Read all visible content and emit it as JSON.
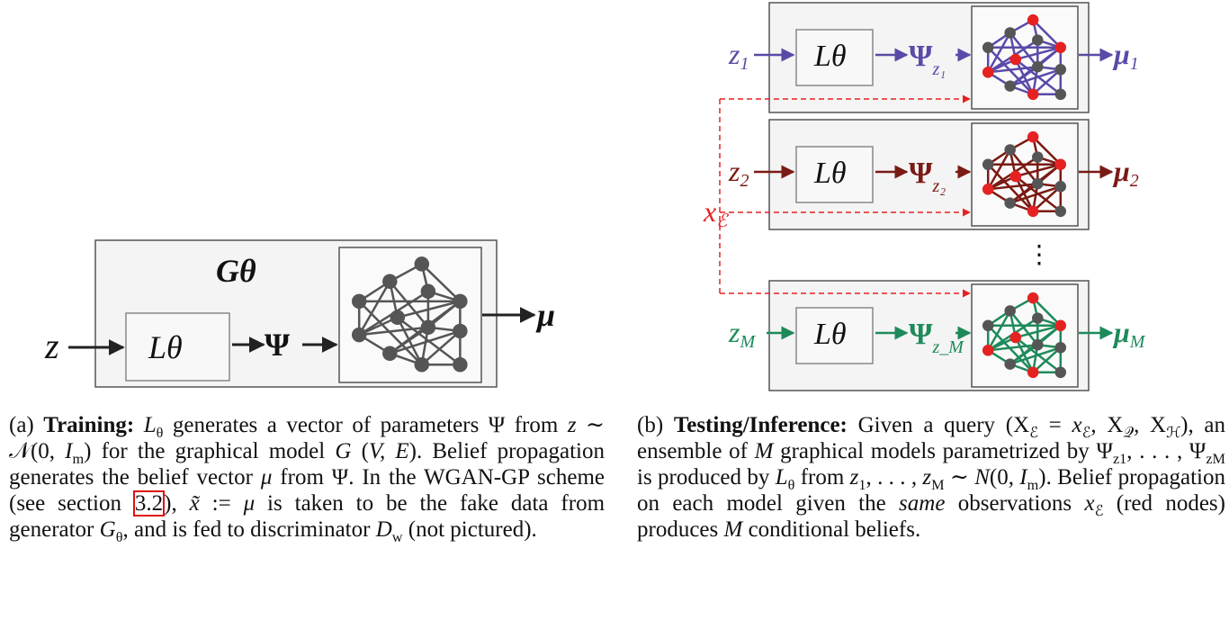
{
  "colors": {
    "panel_bg": "#f4f4f4",
    "panel_border": "#555555",
    "training": "#555555",
    "model1": "#5a4aa8",
    "model2": "#7a1a14",
    "modelM": "#1e8a5a",
    "evidence": "#e52222",
    "node_gray": "#555555",
    "ref_box": "#e01010"
  },
  "figure_a": {
    "generator_label": "Gθ",
    "latent_label": "z",
    "network_label": "Lθ",
    "params_label": "Ψ",
    "output_label": "μ"
  },
  "figure_b": {
    "evidence_label": "x",
    "evidence_sub": "ℰ",
    "ellipsis": "⋮",
    "models": [
      {
        "z": "z",
        "z_sub": "1",
        "L": "Lθ",
        "psi": "Ψ",
        "psi_sub": "z₁",
        "mu": "μ",
        "mu_sub": "1"
      },
      {
        "z": "z",
        "z_sub": "2",
        "L": "Lθ",
        "psi": "Ψ",
        "psi_sub": "z₂",
        "mu": "μ",
        "mu_sub": "2"
      },
      {
        "z": "z",
        "z_sub": "M",
        "L": "Lθ",
        "psi": "Ψ",
        "psi_sub": "z_M",
        "mu": "μ",
        "mu_sub": "M"
      }
    ]
  },
  "caption_a": [
    {
      "t": "(a) "
    },
    {
      "t": "Training:",
      "b": true
    },
    {
      "t": " "
    },
    {
      "t": "L",
      "i": true
    },
    {
      "t": "θ",
      "sub": true
    },
    {
      "t": " generates a vector of parameters Ψ from "
    },
    {
      "t": "z",
      "i": true
    },
    {
      "t": " ∼ 𝒩(0, "
    },
    {
      "t": "I",
      "i": true
    },
    {
      "t": "m",
      "sub": true
    },
    {
      "t": ") for the graphical model "
    },
    {
      "t": "G",
      "i": true
    },
    {
      "t": " ("
    },
    {
      "t": "V, E",
      "i": true
    },
    {
      "t": ").  Belief propagation generates the belief vector "
    },
    {
      "t": "μ",
      "i": true
    },
    {
      "t": " from Ψ.  In the WGAN-GP scheme (see section "
    },
    {
      "t": "3.2",
      "box": true
    },
    {
      "t": "), "
    },
    {
      "t": "x̃",
      "i": true
    },
    {
      "t": " := "
    },
    {
      "t": "μ",
      "i": true
    },
    {
      "t": " is taken to be the fake data from generator "
    },
    {
      "t": "G",
      "i": true
    },
    {
      "t": "θ",
      "sub": true
    },
    {
      "t": ", and is fed to discriminator "
    },
    {
      "t": "D",
      "i": true
    },
    {
      "t": "w",
      "sub": true
    },
    {
      "t": " (not pictured)."
    }
  ],
  "caption_b": [
    {
      "t": "(b) "
    },
    {
      "t": "Testing/Inference:",
      "b": true
    },
    {
      "t": "  Given a query (X"
    },
    {
      "t": "ℰ",
      "sub": true
    },
    {
      "t": " = "
    },
    {
      "t": "x",
      "i": true
    },
    {
      "t": "ℰ",
      "sub": true
    },
    {
      "t": ", X"
    },
    {
      "t": "𝒬",
      "sub": true
    },
    {
      "t": ", X"
    },
    {
      "t": "ℋ",
      "sub": true
    },
    {
      "t": "), an ensemble of "
    },
    {
      "t": "M",
      "i": true
    },
    {
      "t": " graphical models parametrized by Ψ"
    },
    {
      "t": "z1",
      "sub": true
    },
    {
      "t": ", . . . , Ψ"
    },
    {
      "t": "zM",
      "sub": true
    },
    {
      "t": " is produced by "
    },
    {
      "t": "L",
      "i": true
    },
    {
      "t": "θ",
      "sub": true
    },
    {
      "t": " from "
    },
    {
      "t": "z",
      "i": true
    },
    {
      "t": "1",
      "sub": true
    },
    {
      "t": ", . . . , "
    },
    {
      "t": "z",
      "i": true
    },
    {
      "t": "M",
      "sub": true
    },
    {
      "t": " ∼ "
    },
    {
      "t": "N",
      "i": true
    },
    {
      "t": "(0, "
    },
    {
      "t": "I",
      "i": true
    },
    {
      "t": "m",
      "sub": true
    },
    {
      "t": ").  Belief propagation on each model given the "
    },
    {
      "t": "same",
      "i": true
    },
    {
      "t": " observations "
    },
    {
      "t": "x",
      "i": true
    },
    {
      "t": "ℰ",
      "sub": true
    },
    {
      "t": " (red nodes) produces "
    },
    {
      "t": "M",
      "i": true
    },
    {
      "t": " conditional beliefs."
    }
  ]
}
